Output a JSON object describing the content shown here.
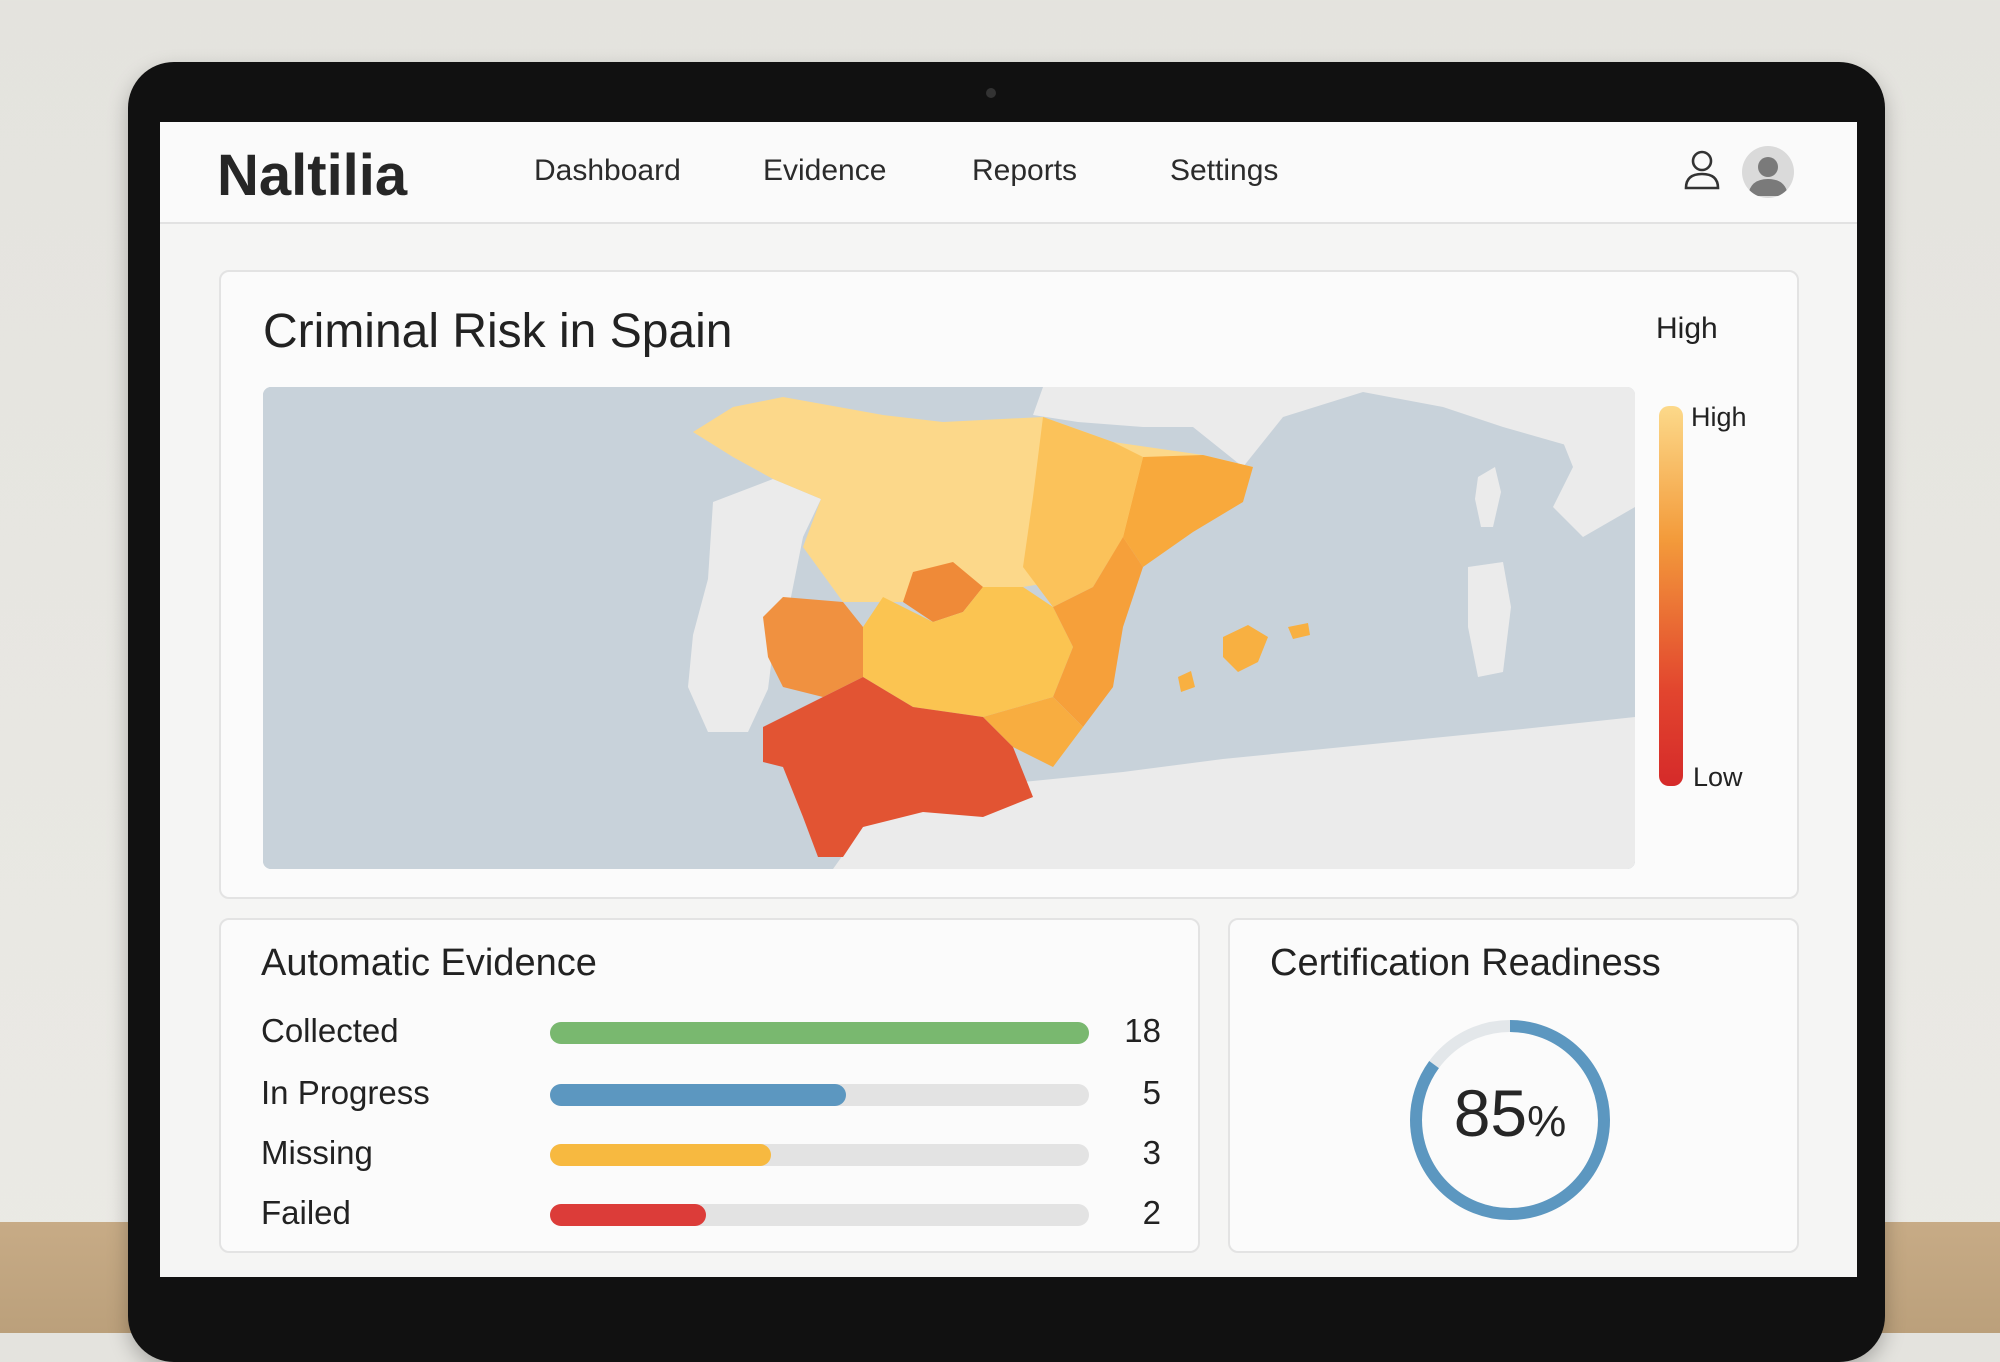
{
  "nav": {
    "logo": "Naltilia",
    "links": [
      "Dashboard",
      "Evidence",
      "Reports",
      "Settings"
    ]
  },
  "map_card": {
    "title": "Criminal Risk in Spain",
    "legend_top": "High",
    "legend_high": "High",
    "legend_low": "Low"
  },
  "evidence": {
    "title": "Automatic Evidence",
    "rows": [
      {
        "label": "Collected",
        "count": "18",
        "fraction": 1.0,
        "color": "#79b86f"
      },
      {
        "label": "In Progress",
        "count": "5",
        "fraction": 0.55,
        "color": "#5c97c0"
      },
      {
        "label": "Missing",
        "count": "3",
        "fraction": 0.41,
        "color": "#f7b940"
      },
      {
        "label": "Failed",
        "count": "2",
        "fraction": 0.29,
        "color": "#dc3c39"
      }
    ]
  },
  "certification": {
    "title": "Certification Readiness",
    "value": "85",
    "unit": "%",
    "percent": 85,
    "color": "#5c97c0"
  },
  "colors": {
    "risk_high": "#fcd98a",
    "risk_mid": "#f39b3b",
    "risk_low": "#d52a2a",
    "sea": "#c8d2da",
    "land": "#ebebeb"
  }
}
